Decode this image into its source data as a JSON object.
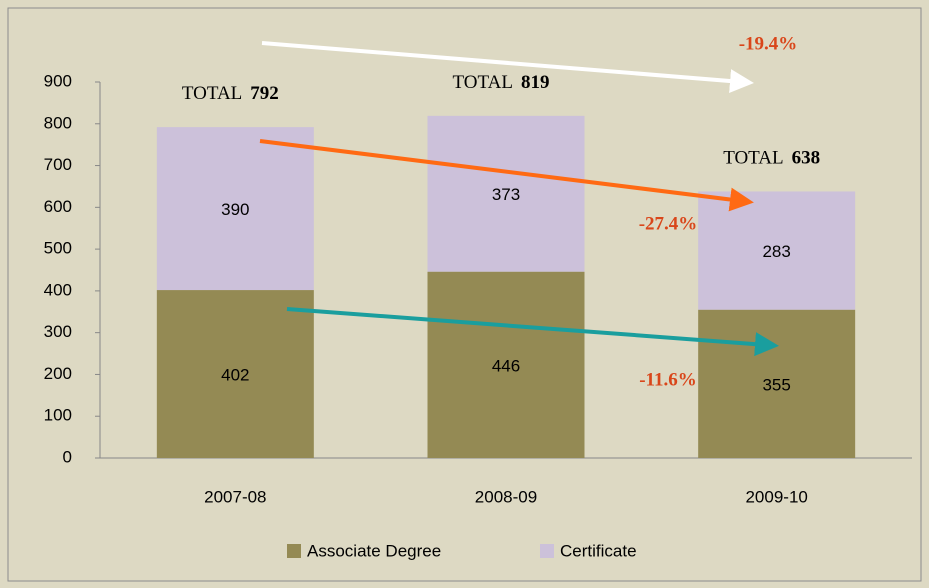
{
  "chart_data": {
    "type": "stacked_bar",
    "categories": [
      "2007-08",
      "2008-09",
      "2009-10"
    ],
    "series": [
      {
        "name": "Associate Degree",
        "color": "#948a54",
        "values": [
          402,
          446,
          355
        ]
      },
      {
        "name": "Certificate",
        "color": "#ccc1da",
        "values": [
          390,
          373,
          283
        ]
      }
    ],
    "ylim": [
      0,
      900
    ],
    "yticks": [
      0,
      100,
      200,
      300,
      400,
      500,
      600,
      700,
      800,
      900
    ],
    "total_label": "TOTAL",
    "totals": [
      792,
      819,
      638
    ],
    "annotations": [
      "-19.4%",
      "-27.4%",
      "-11.6%"
    ],
    "legend": "bottom"
  }
}
